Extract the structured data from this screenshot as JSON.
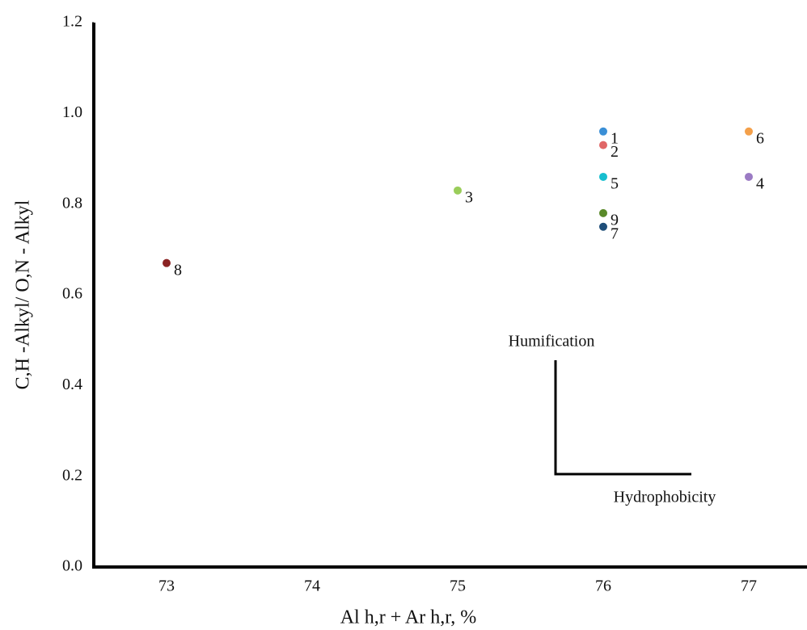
{
  "chart_data": {
    "type": "scatter",
    "x_label": "Al h,r + Ar h,r, %",
    "y_label": "C,H -Alkyl/ O,N - Alkyl",
    "xlim": [
      72.5,
      77.4
    ],
    "xticks": [
      73,
      74,
      75,
      76,
      77
    ],
    "ylim": [
      0,
      1.2
    ],
    "yticks": [
      {
        "value": 0,
        "label": "0.0"
      },
      0.2,
      0.4,
      0.6,
      0.8,
      {
        "value": 1,
        "label": "1.0"
      },
      1.2
    ],
    "grid": false,
    "series": [
      {
        "x": [
          76,
          76,
          75,
          77,
          76,
          77,
          76,
          73,
          76
        ],
        "values": [
          0.96,
          0.93,
          0.83,
          0.86,
          0.86,
          0.96,
          0.75,
          0.67,
          0.78
        ],
        "point_labels": [
          "1",
          "2",
          "3",
          "4",
          "5",
          "6",
          "7",
          "8",
          "9"
        ],
        "colors": [
          "#3a8fd6",
          "#e06666",
          "#9acd5a",
          "#9b7bc4",
          "#17becf",
          "#f4a04a",
          "#1f4e79",
          "#8b2323",
          "#5a8a2a"
        ]
      }
    ],
    "annotations": [
      "Humification",
      "Hydrophobicity"
    ]
  }
}
